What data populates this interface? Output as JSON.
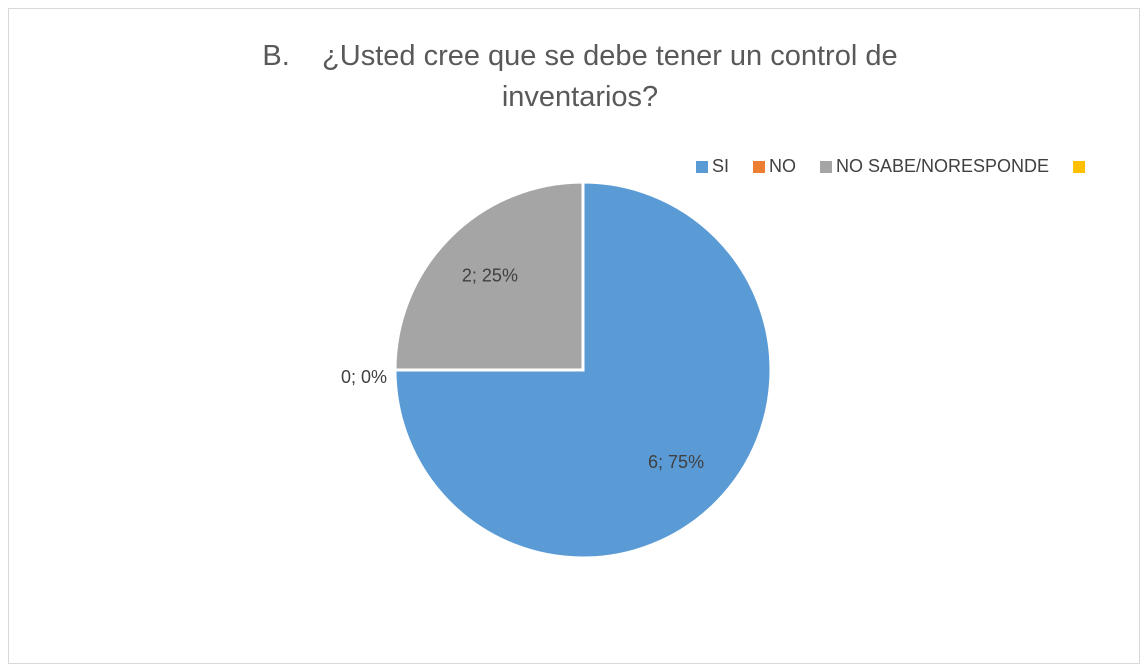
{
  "chart_data": {
    "type": "pie",
    "title": "B.    ¿Usted cree que se debe tener un control de inventarios?",
    "categories": [
      "SI",
      "NO",
      "NO SABE/NORESPONDE",
      null
    ],
    "values": [
      6,
      0,
      2,
      null
    ],
    "value_labels": [
      "6; 75%",
      "0; 0%",
      "2; 25%",
      null
    ],
    "colors": [
      "#5b9bd5",
      "#ed7d31",
      "#a5a5a5",
      "#ffc000"
    ],
    "legend": "top-right"
  }
}
